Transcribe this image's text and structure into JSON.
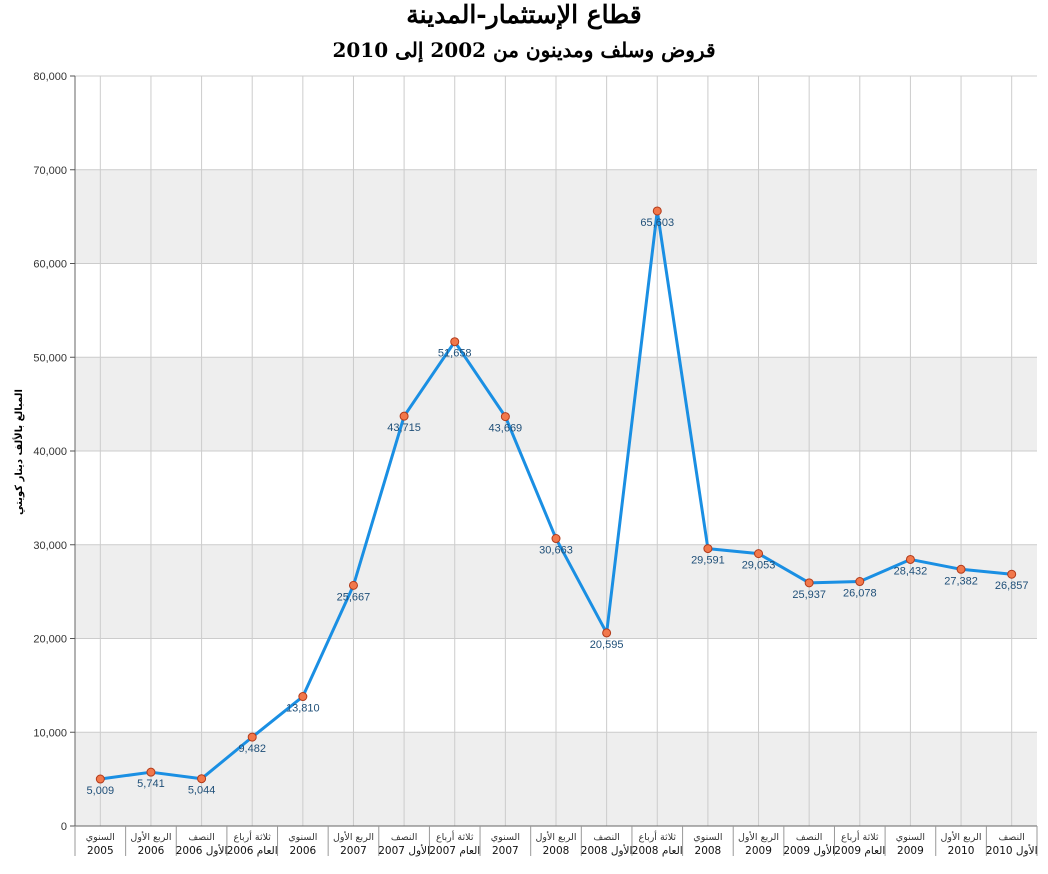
{
  "chart_data": {
    "type": "line",
    "title": "قطاع الإستثمار-المدينة",
    "subtitle": "قروض وسلف ومدينون من 2002 إلى 2010",
    "ylabel": "المبالغ بالألف دينار كويتي",
    "xlabel": "",
    "ylim": [
      0,
      80000
    ],
    "yticks": [
      "0",
      "10,000",
      "20,000",
      "30,000",
      "40,000",
      "50,000",
      "60,000",
      "70,000",
      "80,000"
    ],
    "grid": true,
    "categories": [
      {
        "line1": "السنوي",
        "line2": "2005"
      },
      {
        "line1": "الربع الأول",
        "line2": "2006"
      },
      {
        "line1": "النصف",
        "line2": "الأول 2006"
      },
      {
        "line1": "ثلاثة أرباع",
        "line2": "العام 2006"
      },
      {
        "line1": "السنوي",
        "line2": "2006"
      },
      {
        "line1": "الربع الأول",
        "line2": "2007"
      },
      {
        "line1": "النصف",
        "line2": "الأول 2007"
      },
      {
        "line1": "ثلاثة أرباع",
        "line2": "العام 2007"
      },
      {
        "line1": "السنوي",
        "line2": "2007"
      },
      {
        "line1": "الربع الأول",
        "line2": "2008"
      },
      {
        "line1": "النصف",
        "line2": "الأول 2008"
      },
      {
        "line1": "ثلاثة أرباع",
        "line2": "العام 2008"
      },
      {
        "line1": "السنوي",
        "line2": "2008"
      },
      {
        "line1": "الربع الأول",
        "line2": "2009"
      },
      {
        "line1": "النصف",
        "line2": "الأول 2009"
      },
      {
        "line1": "ثلاثة أرباع",
        "line2": "العام 2009"
      },
      {
        "line1": "السنوي",
        "line2": "2009"
      },
      {
        "line1": "الربع الأول",
        "line2": "2010"
      },
      {
        "line1": "النصف",
        "line2": "الأول 2010"
      }
    ],
    "values": [
      5009,
      5741,
      5044,
      9482,
      13810,
      25667,
      43715,
      51658,
      43669,
      30663,
      20595,
      65603,
      29591,
      29053,
      25937,
      26078,
      28432,
      27382,
      26857
    ],
    "value_labels": [
      "5,009",
      "5,741",
      "5,044",
      "9,482",
      "13,810",
      "25,667",
      "43,715",
      "51,658",
      "43,669",
      "30,663",
      "20,595",
      "65,603",
      "29,591",
      "29,053",
      "25,937",
      "26,078",
      "28,432",
      "27,382",
      "26,857"
    ],
    "colors": {
      "line": "#1a8fe3",
      "marker_fill": "#f2784b",
      "marker_stroke": "#b23a1a",
      "band": "#eeeeee",
      "grid": "#cccccc",
      "label": "#1f4f78"
    }
  }
}
